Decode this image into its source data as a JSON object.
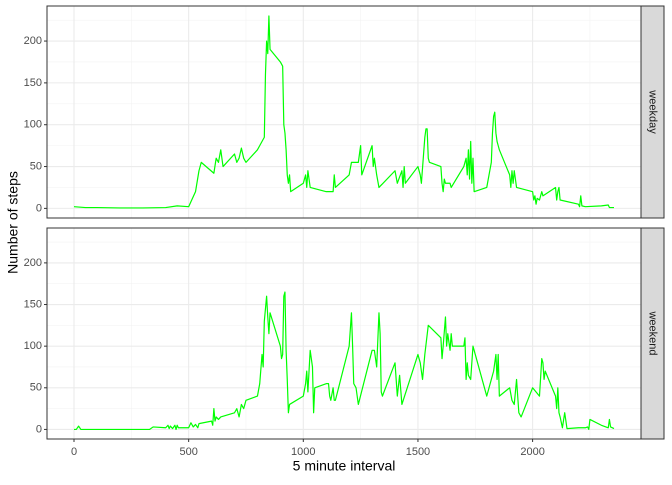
{
  "chart_data": [
    {
      "type": "line",
      "facet": "weekday",
      "y_label": "Number of steps",
      "color": "#00ff00",
      "grid": true,
      "xlim": [
        -117.75,
        2472.75
      ],
      "xticks": [
        0,
        500,
        1000,
        1500,
        2000
      ],
      "ylim": [
        -11.5,
        241.9
      ],
      "yticks": [
        0,
        50,
        100,
        150,
        200
      ],
      "x": [
        0,
        50,
        100,
        200,
        300,
        400,
        450,
        500,
        530,
        545,
        555,
        610,
        620,
        630,
        640,
        650,
        700,
        710,
        720,
        730,
        740,
        750,
        800,
        810,
        830,
        835,
        840,
        845,
        850,
        855,
        900,
        910,
        915,
        920,
        925,
        930,
        935,
        940,
        945,
        1000,
        1010,
        1015,
        1020,
        1030,
        1100,
        1130,
        1135,
        1140,
        1200,
        1210,
        1240,
        1250,
        1255,
        1300,
        1305,
        1310,
        1320,
        1330,
        1400,
        1410,
        1430,
        1435,
        1440,
        1445,
        1500,
        1505,
        1510,
        1515,
        1530,
        1535,
        1540,
        1545,
        1550,
        1600,
        1605,
        1610,
        1615,
        1620,
        1640,
        1645,
        1700,
        1710,
        1715,
        1720,
        1725,
        1730,
        1735,
        1740,
        1745,
        1800,
        1810,
        1820,
        1825,
        1830,
        1835,
        1840,
        1845,
        1850,
        1855,
        1900,
        1905,
        1910,
        1915,
        1920,
        1930,
        2000,
        2005,
        2010,
        2015,
        2020,
        2030,
        2040,
        2045,
        2100,
        2105,
        2110,
        2115,
        2120,
        2200,
        2205,
        2210,
        2215,
        2230,
        2300,
        2330,
        2335,
        2355
      ],
      "values": [
        2,
        1,
        1,
        0.5,
        0.5,
        1,
        3,
        2,
        20,
        45,
        55,
        42,
        60,
        55,
        70,
        50,
        65,
        55,
        60,
        72,
        60,
        55,
        70,
        75,
        85,
        160,
        200,
        185,
        230,
        190,
        175,
        170,
        100,
        90,
        70,
        40,
        30,
        40,
        20,
        30,
        40,
        25,
        45,
        25,
        20,
        20,
        40,
        25,
        40,
        55,
        55,
        75,
        40,
        75,
        50,
        60,
        40,
        25,
        45,
        30,
        45,
        25,
        50,
        30,
        50,
        45,
        40,
        30,
        85,
        95,
        95,
        60,
        55,
        50,
        30,
        20,
        35,
        30,
        30,
        25,
        50,
        60,
        40,
        70,
        35,
        80,
        30,
        60,
        20,
        25,
        40,
        55,
        90,
        110,
        115,
        90,
        80,
        75,
        70,
        40,
        25,
        45,
        30,
        45,
        25,
        20,
        10,
        15,
        5,
        12,
        10,
        20,
        15,
        25,
        10,
        20,
        25,
        10,
        5,
        2,
        15,
        3,
        2,
        3,
        4,
        1,
        1
      ]
    },
    {
      "type": "line",
      "facet": "weekend",
      "x_label": "5 minute interval",
      "color": "#00ff00",
      "grid": true,
      "xlim": [
        -117.75,
        2472.75
      ],
      "xticks": [
        0,
        500,
        1000,
        1500,
        2000
      ],
      "ylim": [
        -11.5,
        241.9
      ],
      "yticks": [
        0,
        50,
        100,
        150,
        200
      ],
      "x": [
        0,
        10,
        20,
        30,
        100,
        200,
        300,
        330,
        345,
        400,
        410,
        415,
        420,
        430,
        440,
        445,
        450,
        455,
        500,
        510,
        520,
        530,
        540,
        545,
        600,
        605,
        610,
        615,
        620,
        630,
        640,
        700,
        710,
        720,
        730,
        740,
        750,
        800,
        810,
        820,
        825,
        830,
        835,
        840,
        845,
        850,
        855,
        900,
        905,
        910,
        915,
        920,
        925,
        930,
        935,
        940,
        1000,
        1010,
        1015,
        1020,
        1030,
        1040,
        1045,
        1050,
        1100,
        1110,
        1115,
        1120,
        1130,
        1135,
        1140,
        1200,
        1205,
        1210,
        1215,
        1220,
        1230,
        1240,
        1300,
        1310,
        1320,
        1330,
        1335,
        1340,
        1345,
        1400,
        1410,
        1420,
        1430,
        1500,
        1510,
        1520,
        1530,
        1545,
        1600,
        1605,
        1610,
        1620,
        1625,
        1630,
        1640,
        1645,
        1650,
        1700,
        1705,
        1710,
        1715,
        1720,
        1730,
        1740,
        1745,
        1800,
        1830,
        1840,
        1845,
        1850,
        1855,
        1900,
        1910,
        1920,
        1930,
        1940,
        1950,
        2000,
        2030,
        2040,
        2045,
        2050,
        2055,
        2100,
        2105,
        2110,
        2115,
        2120,
        2130,
        2140,
        2150,
        2200,
        2230,
        2240,
        2245,
        2250,
        2300,
        2330,
        2335,
        2340,
        2355
      ],
      "values": [
        0,
        0,
        4,
        0,
        0,
        0,
        0,
        0,
        3,
        2,
        5,
        1,
        4,
        1,
        5,
        0,
        5,
        2,
        2,
        8,
        3,
        6,
        2,
        7,
        10,
        5,
        25,
        10,
        15,
        12,
        15,
        20,
        25,
        15,
        30,
        25,
        35,
        40,
        55,
        90,
        75,
        130,
        145,
        160,
        135,
        115,
        140,
        100,
        85,
        90,
        160,
        165,
        95,
        60,
        20,
        30,
        40,
        55,
        70,
        45,
        95,
        75,
        20,
        50,
        55,
        55,
        40,
        35,
        50,
        35,
        35,
        100,
        120,
        140,
        100,
        55,
        50,
        30,
        95,
        95,
        75,
        140,
        115,
        45,
        40,
        80,
        40,
        65,
        30,
        90,
        80,
        60,
        90,
        125,
        110,
        85,
        100,
        135,
        100,
        115,
        95,
        115,
        100,
        100,
        110,
        60,
        80,
        65,
        60,
        100,
        95,
        40,
        70,
        90,
        60,
        90,
        40,
        50,
        35,
        30,
        60,
        20,
        15,
        50,
        40,
        85,
        80,
        60,
        70,
        40,
        25,
        50,
        20,
        15,
        2,
        20,
        1,
        2,
        2,
        3,
        0,
        12,
        5,
        2,
        12,
        3,
        1
      ]
    }
  ]
}
